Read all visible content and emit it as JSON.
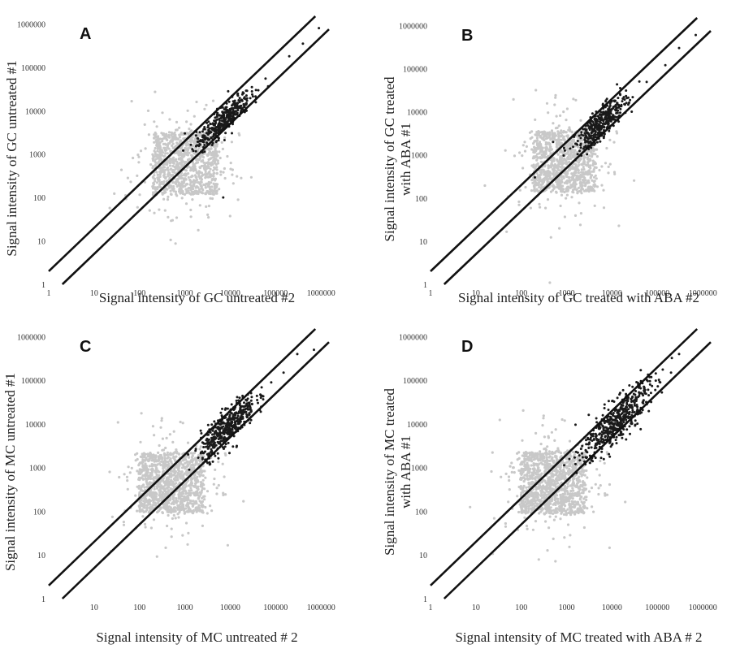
{
  "chart_data": [
    {
      "type": "scatter",
      "panel_label": "A",
      "xlabel": "Signal intensity of GC untreated #2",
      "ylabel": [
        "Signal intensity of GC untreated #1"
      ],
      "x_ticks": [
        "1",
        "10",
        "100",
        "1000",
        "10000",
        "100000",
        "1000000"
      ],
      "y_ticks": [
        "1",
        "10",
        "100",
        "1000",
        "10000",
        "100000",
        "1000000"
      ],
      "scale": "log-log",
      "xlim": [
        1,
        1500000
      ],
      "ylim": [
        1,
        1500000
      ],
      "grid": false,
      "series": [
        {
          "color": "#c8c8c8",
          "cloud": {
            "center": [
              1000,
              600
            ],
            "spread": [
              1.3,
              1.3
            ],
            "count": 1100
          }
        },
        {
          "color": "#1a1a1a",
          "cloud": {
            "center": [
              7000,
              6000
            ],
            "spread": [
              0.6,
              0.45
            ],
            "count": 380
          },
          "points": [
            [
              200000,
              180000
            ],
            [
              400000,
              350000
            ],
            [
              900000,
              800000
            ],
            [
              60000,
              55000
            ],
            [
              30000,
              35000
            ],
            [
              1000,
              3000
            ],
            [
              5000,
              2000
            ],
            [
              7000,
              100
            ]
          ]
        }
      ],
      "reference_lines": [
        {
          "label": "",
          "fold": 2
        },
        {
          "label": "",
          "fold": 0.5
        }
      ]
    },
    {
      "type": "scatter",
      "panel_label": "B",
      "xlabel": "Signal intensity of GC treated with ABA #2",
      "ylabel": [
        "Signal intensity of GC treated",
        "with ABA #1"
      ],
      "x_ticks": [
        "1",
        "10",
        "100",
        "1000",
        "10000",
        "100000",
        "1000000"
      ],
      "y_ticks": [
        "1",
        "10",
        "100",
        "1000",
        "10000",
        "100000",
        "1000000"
      ],
      "scale": "log-log",
      "xlim": [
        1,
        1500000
      ],
      "ylim": [
        1,
        1500000
      ],
      "grid": false,
      "series": [
        {
          "color": "#c8c8c8",
          "cloud": {
            "center": [
              900,
              700
            ],
            "spread": [
              1.25,
              1.3
            ],
            "count": 1100
          }
        },
        {
          "color": "#1a1a1a",
          "cloud": {
            "center": [
              6000,
              5500
            ],
            "spread": [
              0.55,
              0.5
            ],
            "count": 400
          },
          "points": [
            [
              300000,
              300000
            ],
            [
              700000,
              600000
            ],
            [
              150000,
              120000
            ],
            [
              40000,
              50000
            ],
            [
              500,
              2000
            ],
            [
              200,
              300
            ]
          ]
        }
      ],
      "reference_lines": [
        {
          "label": "",
          "fold": 2
        },
        {
          "label": "",
          "fold": 0.5
        }
      ]
    },
    {
      "type": "scatter",
      "panel_label": "C",
      "xlabel": "Signal intensity of MC untreated # 2",
      "ylabel": [
        "Signal intensity of MC untreated  #1"
      ],
      "x_ticks": [
        "10",
        "100",
        "1000",
        "10000",
        "100000",
        "1000000"
      ],
      "y_ticks": [
        "1",
        "10",
        "100",
        "1000",
        "10000",
        "100000",
        "1000000"
      ],
      "scale": "log-log",
      "xlim": [
        1,
        1500000
      ],
      "ylim": [
        1,
        1500000
      ],
      "grid": false,
      "series": [
        {
          "color": "#c8c8c8",
          "cloud": {
            "center": [
              500,
              450
            ],
            "spread": [
              1.3,
              1.25
            ],
            "count": 1200
          }
        },
        {
          "color": "#1a1a1a",
          "cloud": {
            "center": [
              9000,
              9000
            ],
            "spread": [
              0.6,
              0.6
            ],
            "count": 450
          },
          "points": [
            [
              300000,
              400000
            ],
            [
              700000,
              500000
            ],
            [
              150000,
              150000
            ],
            [
              80000,
              90000
            ]
          ]
        }
      ],
      "reference_lines": [
        {
          "label": "",
          "fold": 2
        },
        {
          "label": "",
          "fold": 0.5
        }
      ]
    },
    {
      "type": "scatter",
      "panel_label": "D",
      "xlabel": "Signal intensity of MC treated with ABA # 2",
      "ylabel": [
        "Signal intensity of MC treated",
        "with ABA #1"
      ],
      "x_ticks": [
        "1",
        "10",
        "100",
        "1000",
        "10000",
        "100000",
        "1000000"
      ],
      "y_ticks": [
        "1",
        "10",
        "100",
        "1000",
        "10000",
        "100000",
        "1000000"
      ],
      "scale": "log-log",
      "xlim": [
        1,
        1500000
      ],
      "ylim": [
        1,
        1500000
      ],
      "grid": false,
      "series": [
        {
          "color": "#c8c8c8",
          "cloud": {
            "center": [
              500,
              450
            ],
            "spread": [
              1.3,
              1.3
            ],
            "count": 1300
          }
        },
        {
          "color": "#1a1a1a",
          "cloud": {
            "center": [
              12000,
              11000
            ],
            "spread": [
              0.75,
              0.7
            ],
            "count": 500
          },
          "points": [
            [
              300000,
              400000
            ],
            [
              600000,
              300000
            ],
            [
              200000,
              150000
            ],
            [
              90000,
              60000
            ]
          ]
        }
      ],
      "reference_lines": [
        {
          "label": "",
          "fold": 2
        },
        {
          "label": "",
          "fold": 0.5
        }
      ]
    }
  ]
}
